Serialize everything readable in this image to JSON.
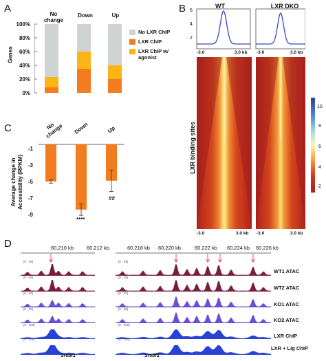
{
  "panels": {
    "a": "A",
    "b": "B",
    "c": "C",
    "d": "D"
  },
  "panelA": {
    "columns": [
      "No change",
      "Down",
      "Up"
    ],
    "ylabel": "Genes",
    "yticks": [
      "100%",
      "80%",
      "60%",
      "40%",
      "20%",
      "0%"
    ],
    "legend": [
      {
        "label": "No LXR ChIP",
        "color": "#cfd3d3"
      },
      {
        "label": "LXR ChIP",
        "color": "#f47c20"
      },
      {
        "label": "LXR ChIP w/ agonist",
        "color": "#fbb516"
      }
    ]
  },
  "panelB": {
    "wt_label": "WT",
    "dko_label": "LXR DKO",
    "profile_yticks": [
      "6",
      "4",
      "2"
    ],
    "x_left": "-3.0",
    "x_right": "3.0 kb",
    "ylabel": "LXR binding sites",
    "colorbar_ticks": [
      "10",
      "8",
      "6",
      "4",
      "2"
    ]
  },
  "panelC": {
    "columns": [
      "No change",
      "Down",
      "Up"
    ],
    "ylabel": "Average change in Accessibility (RPKM)",
    "yticks": [
      "-1",
      "-3",
      "-5",
      "-7",
      "-9"
    ],
    "sig_down": "****",
    "sig_up": "##"
  },
  "panelD": {
    "left_coords": [
      "60,210 kb",
      "60,212 kb"
    ],
    "right_coords": [
      "60,218 kb",
      "60,220 kb",
      "60,222 kb",
      "60,224 kb",
      "60,226 kb"
    ],
    "tracks": [
      {
        "label": "WT1 ATAC",
        "color": "#7a1d3f",
        "range": "[0 - 35]"
      },
      {
        "label": "WT2 ATAC",
        "color": "#7a1d3f",
        "range": "[0 - 35]"
      },
      {
        "label": "KO1 ATAC",
        "color": "#6a4fd6",
        "range": "[0 - 35]"
      },
      {
        "label": "KO2 ATAC",
        "color": "#6a4fd6",
        "range": "[0 - 35]"
      },
      {
        "label": "LXR ChIP",
        "color": "#2942d6",
        "range": "[0 - 200]"
      },
      {
        "label": "LXR + Lig ChIP",
        "color": "#2942d6",
        "range": "[0 - 200]"
      }
    ],
    "gene_left": "Srebf1",
    "gene_right": "Srebf1"
  },
  "chart_data": [
    {
      "type": "bar",
      "stacked": true,
      "categories": [
        "No change",
        "Down",
        "Up"
      ],
      "series": [
        {
          "name": "LXR ChIP",
          "values": [
            8,
            35,
            20
          ]
        },
        {
          "name": "LXR ChIP w/ agonist",
          "values": [
            15,
            25,
            20
          ]
        },
        {
          "name": "No LXR ChIP",
          "values": [
            77,
            40,
            60
          ]
        }
      ],
      "ylabel": "Genes",
      "ylim": [
        0,
        100
      ]
    },
    {
      "type": "bar",
      "categories": [
        "No change",
        "Down",
        "Up"
      ],
      "values": [
        -4.5,
        -7.9,
        -4.4
      ],
      "errors": [
        0.2,
        0.7,
        1.3
      ],
      "ylabel": "Average change in Accessibility (RPKM)",
      "ylim": [
        -9,
        0
      ]
    }
  ]
}
